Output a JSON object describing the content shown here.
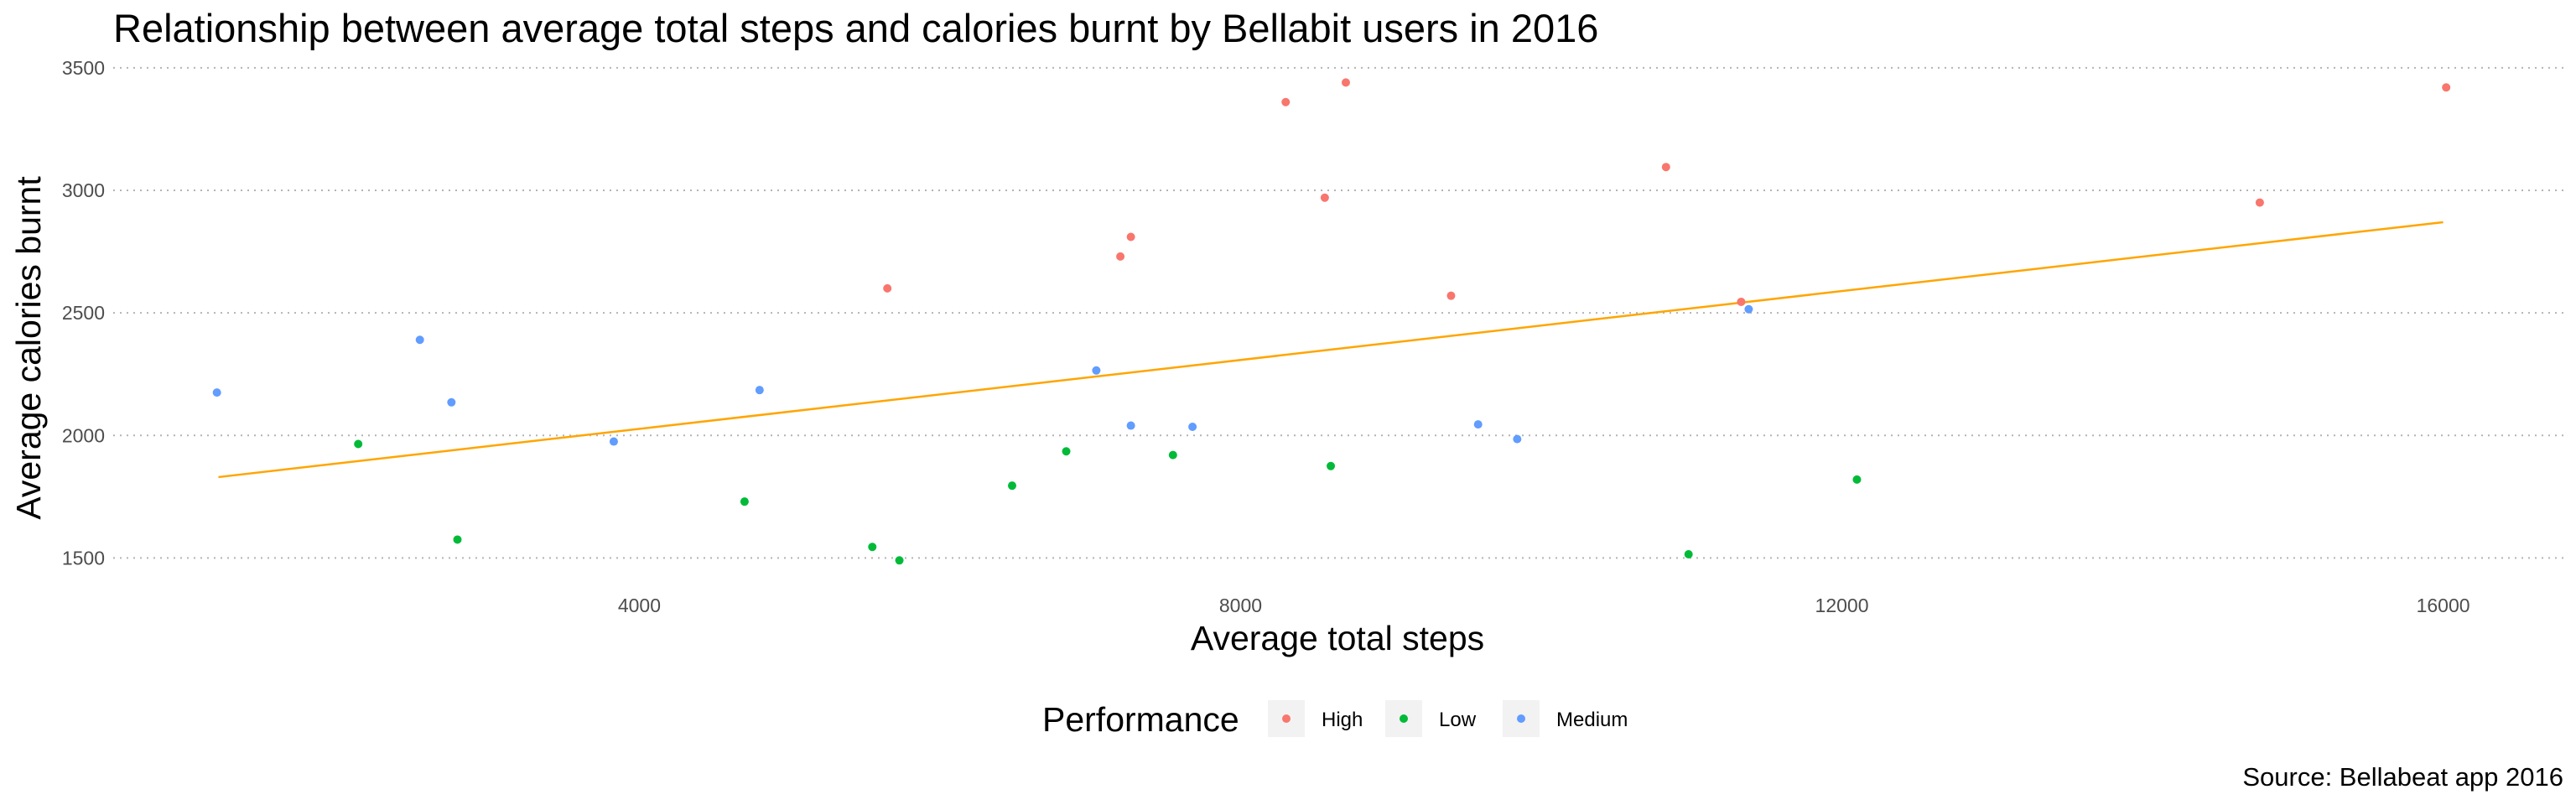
{
  "chart_data": {
    "type": "scatter",
    "title": "Relationship between average total steps and calories burnt by Bellabit users in 2016",
    "xlabel": "Average total steps",
    "ylabel": "Average calories burnt",
    "caption": "Source: Bellabeat app 2016",
    "xlim": [
      500,
      16800
    ],
    "ylim": [
      1450,
      3520
    ],
    "x_ticks": [
      4000,
      8000,
      12000,
      16000
    ],
    "y_ticks": [
      1500,
      2000,
      2500,
      3000,
      3500
    ],
    "grid": "horizontal dotted",
    "legend": {
      "title": "Performance",
      "placement": "bottom",
      "entries": [
        {
          "name": "High",
          "color": "#f8766d"
        },
        {
          "name": "Low",
          "color": "#00ba38"
        },
        {
          "name": "Medium",
          "color": "#619cff"
        }
      ]
    },
    "trend_line": {
      "color": "#ffa500",
      "x": [
        1200,
        16000
      ],
      "y": [
        1830,
        2870
      ]
    },
    "series": [
      {
        "name": "High",
        "color": "#f8766d",
        "points": [
          {
            "x": 5650,
            "y": 2600
          },
          {
            "x": 7200,
            "y": 2730
          },
          {
            "x": 7270,
            "y": 2810
          },
          {
            "x": 8300,
            "y": 3360
          },
          {
            "x": 8560,
            "y": 2970
          },
          {
            "x": 8700,
            "y": 3440
          },
          {
            "x": 9400,
            "y": 2570
          },
          {
            "x": 10830,
            "y": 3095
          },
          {
            "x": 11330,
            "y": 2545
          },
          {
            "x": 14780,
            "y": 2950
          },
          {
            "x": 16020,
            "y": 3420
          }
        ]
      },
      {
        "name": "Low",
        "color": "#00ba38",
        "points": [
          {
            "x": 2130,
            "y": 1965
          },
          {
            "x": 2790,
            "y": 1575
          },
          {
            "x": 4700,
            "y": 1730
          },
          {
            "x": 5550,
            "y": 1545
          },
          {
            "x": 5730,
            "y": 1490
          },
          {
            "x": 6480,
            "y": 1795
          },
          {
            "x": 6840,
            "y": 1935
          },
          {
            "x": 7550,
            "y": 1920
          },
          {
            "x": 8600,
            "y": 1875
          },
          {
            "x": 10980,
            "y": 1515
          },
          {
            "x": 12100,
            "y": 1820
          }
        ]
      },
      {
        "name": "Medium",
        "color": "#619cff",
        "points": [
          {
            "x": 1190,
            "y": 2175
          },
          {
            "x": 2540,
            "y": 2390
          },
          {
            "x": 2750,
            "y": 2135
          },
          {
            "x": 3830,
            "y": 1975
          },
          {
            "x": 4800,
            "y": 2185
          },
          {
            "x": 7040,
            "y": 2265
          },
          {
            "x": 7270,
            "y": 2040
          },
          {
            "x": 7680,
            "y": 2035
          },
          {
            "x": 9580,
            "y": 2045
          },
          {
            "x": 9840,
            "y": 1985
          },
          {
            "x": 11380,
            "y": 2515
          }
        ]
      }
    ]
  }
}
